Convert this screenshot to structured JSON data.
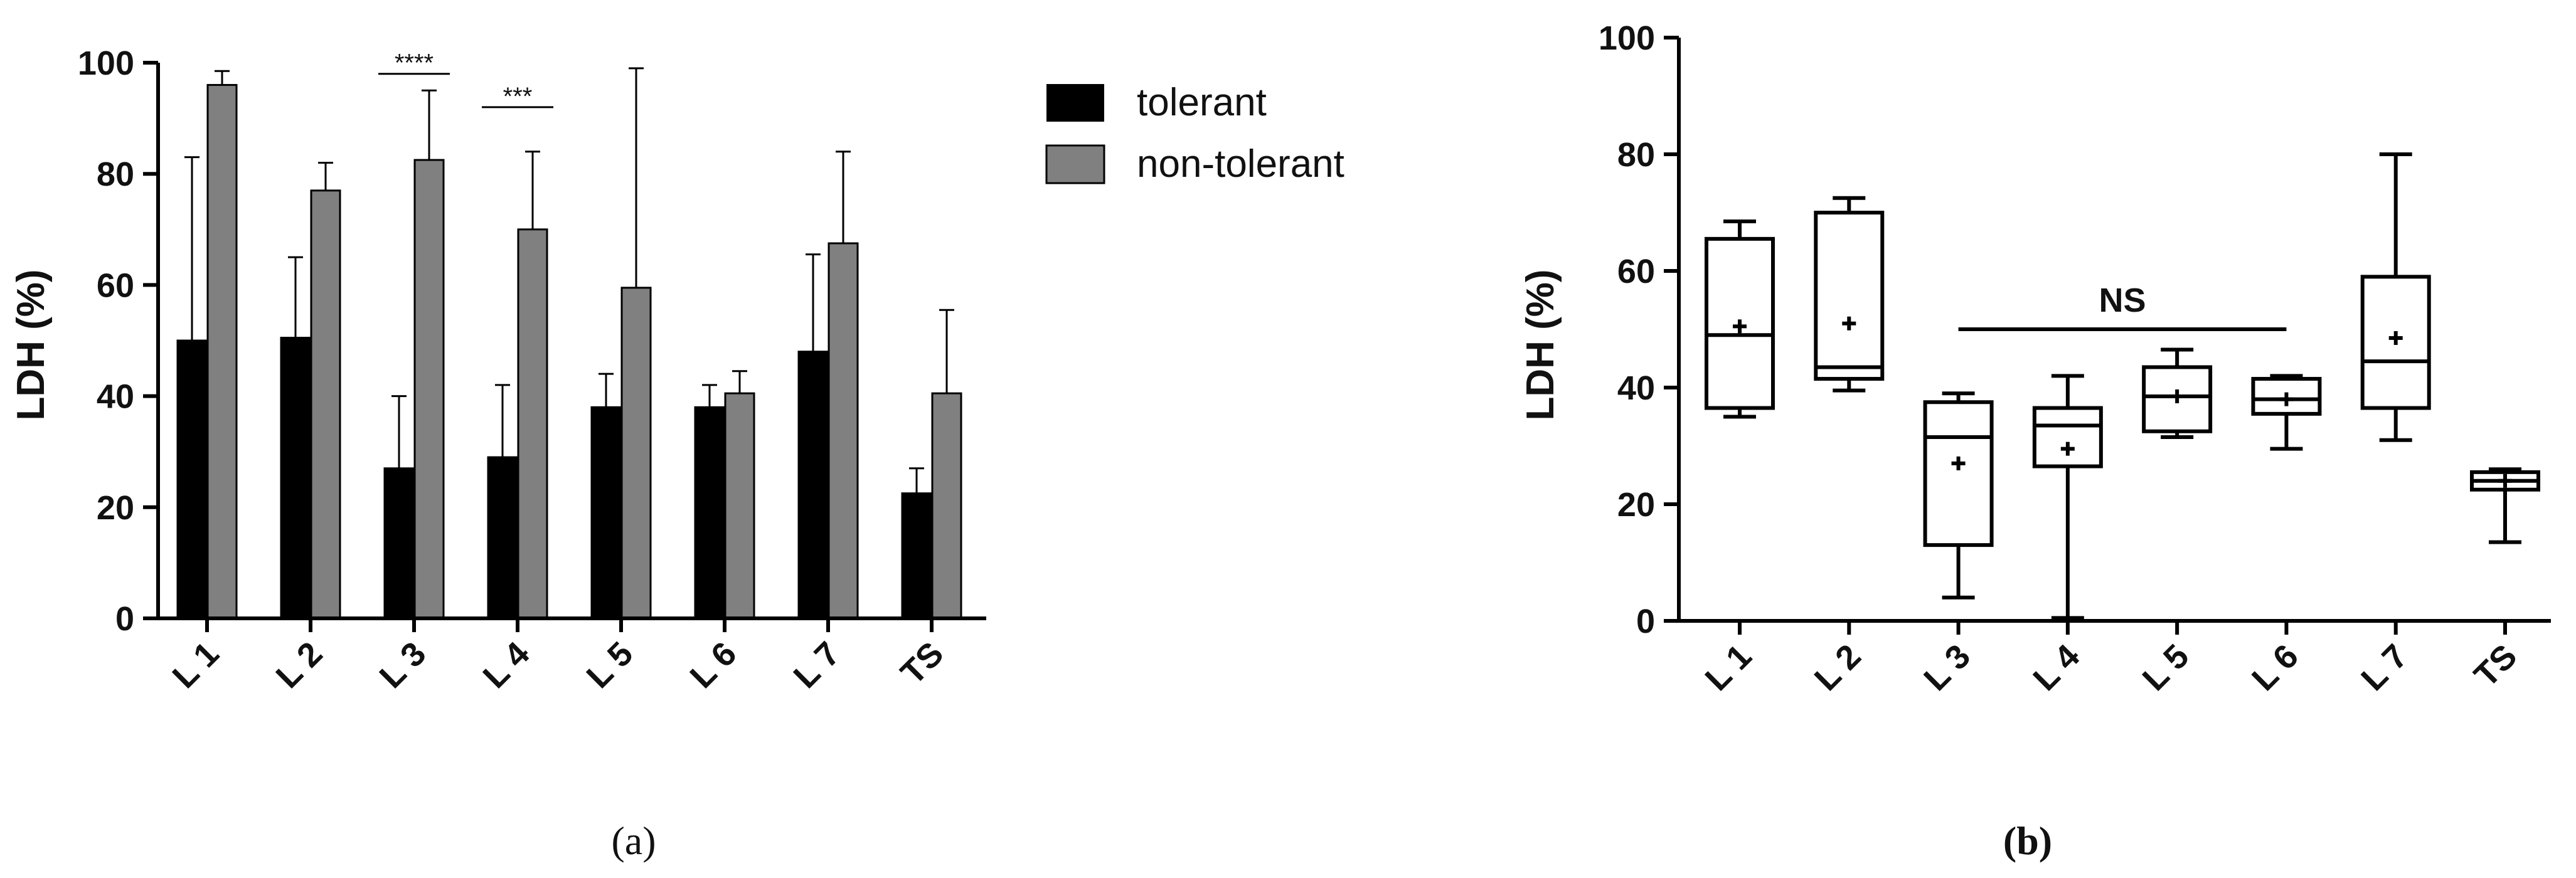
{
  "chart_data": [
    {
      "type": "bar",
      "panel_label": "(a)",
      "ylabel": "LDH (%)",
      "xlabel": "",
      "ylim": [
        0,
        100
      ],
      "yticks": [
        "0",
        "20",
        "40",
        "60",
        "80",
        "100"
      ],
      "categories": [
        "L 1",
        "L 2",
        "L 3",
        "L 4",
        "L 5",
        "L 6",
        "L 7",
        "TS"
      ],
      "legend_position": "top-right",
      "series": [
        {
          "name": "tolerant",
          "color": "#000000",
          "values": [
            50,
            50.5,
            27,
            29,
            38,
            38,
            48,
            22.5
          ],
          "error_upper": [
            83,
            65,
            40,
            42,
            44,
            42,
            65.5,
            27
          ]
        },
        {
          "name": "non-tolerant",
          "color": "#808080",
          "values": [
            96,
            77,
            82.5,
            70,
            59.5,
            40.5,
            67.5,
            40.5
          ],
          "error_upper": [
            98.5,
            82,
            95,
            84,
            99,
            44.5,
            84,
            55.5
          ]
        }
      ],
      "annotations": [
        {
          "text": "****",
          "category": "L 3",
          "y": 98
        },
        {
          "text": "***",
          "category": "L 4",
          "y": 92
        }
      ]
    },
    {
      "type": "box",
      "panel_label": "(b)",
      "ylabel": "LDH (%)",
      "xlabel": "",
      "ylim": [
        0,
        100
      ],
      "yticks": [
        "0",
        "20",
        "40",
        "60",
        "80",
        "100"
      ],
      "categories": [
        "L 1",
        "L 2",
        "L 3",
        "L 4",
        "L 5",
        "L 6",
        "L 7",
        "TS"
      ],
      "boxes": [
        {
          "min": 35,
          "q1": 36.5,
          "median": 49,
          "q3": 65.5,
          "max": 68.5,
          "mean": 50.5
        },
        {
          "min": 39.5,
          "q1": 41.5,
          "median": 43.5,
          "q3": 70,
          "max": 72.5,
          "mean": 51
        },
        {
          "min": 4,
          "q1": 13,
          "median": 31.5,
          "q3": 37.5,
          "max": 39,
          "mean": 27
        },
        {
          "min": 0.5,
          "q1": 26.5,
          "median": 33.5,
          "q3": 36.5,
          "max": 42,
          "mean": 29.5
        },
        {
          "min": 31.5,
          "q1": 32.5,
          "median": 38.5,
          "q3": 43.5,
          "max": 46.5,
          "mean": 38.5
        },
        {
          "min": 29.5,
          "q1": 35.5,
          "median": 38,
          "q3": 41.5,
          "max": 42,
          "mean": 38
        },
        {
          "min": 31,
          "q1": 36.5,
          "median": 44.5,
          "q3": 59,
          "max": 80,
          "mean": 48.5
        },
        {
          "min": 13.5,
          "q1": 22.5,
          "median": 24,
          "q3": 25.5,
          "max": 26,
          "mean": 24
        }
      ],
      "annotations": [
        {
          "text": "NS",
          "from_category": "L 3",
          "to_category": "L 6",
          "y": 50
        }
      ]
    }
  ]
}
